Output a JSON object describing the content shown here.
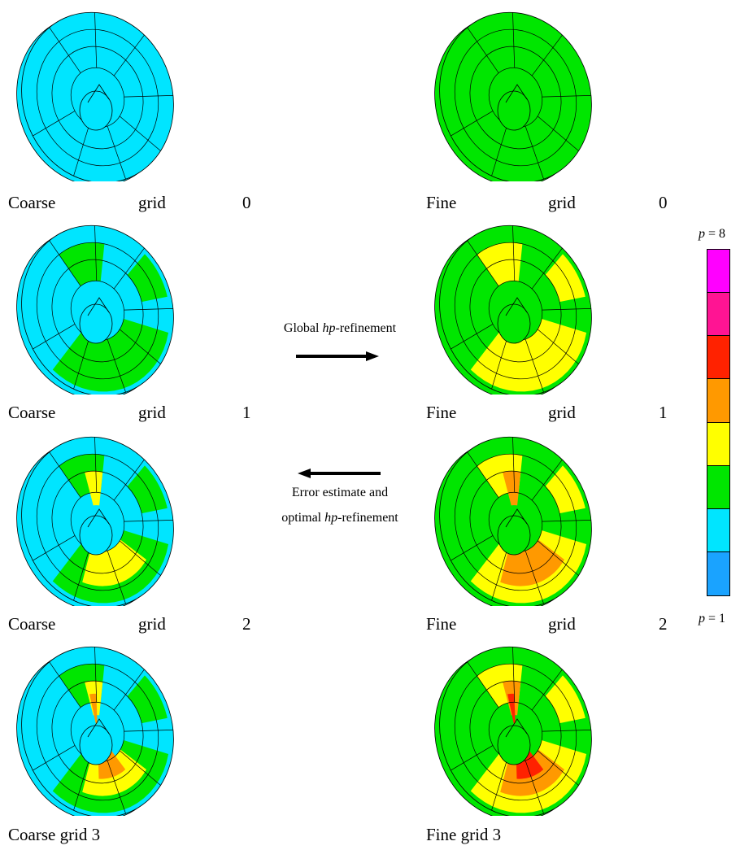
{
  "colors": {
    "p1": "#1aa3ff",
    "p2": "#00e5ff",
    "p3": "#00e600",
    "p4": "#ffff00",
    "p5": "#ff9900",
    "p6": "#ff2200",
    "p7": "#ff1493",
    "p8": "#ff00ff",
    "mesh_line": "#000000"
  },
  "captions": {
    "coarse0": {
      "w1": "Coarse",
      "w2": "grid",
      "w3": "0"
    },
    "fine0": {
      "w1": "Fine",
      "w2": "grid",
      "w3": "0"
    },
    "coarse1": {
      "w1": "Coarse",
      "w2": "grid",
      "w3": "1"
    },
    "fine1": {
      "w1": "Fine",
      "w2": "grid",
      "w3": "1"
    },
    "coarse2": {
      "w1": "Coarse",
      "w2": "grid",
      "w3": "2"
    },
    "fine2": {
      "w1": "Fine",
      "w2": "grid",
      "w3": "2"
    },
    "coarse3": "Coarse grid 3",
    "fine3": "Fine grid 3"
  },
  "arrows": {
    "global_pre": "Global ",
    "global_hp": "hp",
    "global_post": "-refinement",
    "error_line1": "Error estimate and",
    "error_line2_pre": "optimal ",
    "error_line2_hp": "hp",
    "error_line2_post": "-refinement"
  },
  "legend": {
    "top_p": "p",
    "top_eq": " = 8",
    "bottom_p": "p",
    "bottom_eq": " = 1",
    "levels_top_to_bottom": [
      8,
      7,
      6,
      5,
      4,
      3,
      2,
      1
    ]
  },
  "meshes": [
    {
      "id": "coarse0",
      "base": "p2",
      "patches": []
    },
    {
      "id": "fine0",
      "base": "p3",
      "patches": []
    },
    {
      "id": "coarse1",
      "base": "p2",
      "patches": [
        "p3"
      ]
    },
    {
      "id": "fine1",
      "base": "p3",
      "patches": [
        "p4"
      ]
    },
    {
      "id": "coarse2",
      "base": "p2",
      "patches": [
        "p3",
        "p4"
      ]
    },
    {
      "id": "fine2",
      "base": "p3",
      "patches": [
        "p4",
        "p5"
      ]
    },
    {
      "id": "coarse3",
      "base": "p2",
      "patches": [
        "p3",
        "p4",
        "p5"
      ]
    },
    {
      "id": "fine3",
      "base": "p3",
      "patches": [
        "p4",
        "p5",
        "p6"
      ]
    }
  ]
}
